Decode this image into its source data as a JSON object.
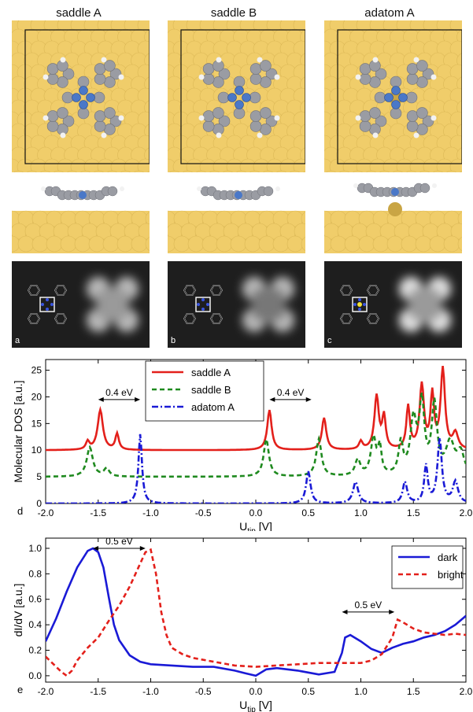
{
  "figure": {
    "column_titles": [
      "saddle A",
      "saddle B",
      "adatom A"
    ],
    "stm_labels": [
      "a",
      "b",
      "c"
    ],
    "colors": {
      "gold": "#f0cd6a",
      "gold_dark": "#c9a544",
      "molecule": "#9a9ca3",
      "nitrogen": "#4a78c8",
      "stm_bg": "#1e1e1e"
    }
  },
  "chart_data": [
    {
      "type": "line",
      "panel_label": "d",
      "ylabel": "Molecular DOS [a.u.]",
      "xlabel_main": "U",
      "xlabel_sub": "tip",
      "xlabel_unit": " [V]",
      "xlim": [
        -2.0,
        2.0
      ],
      "ylim": [
        0,
        27
      ],
      "xticks": [
        "-2.0",
        "-1.5",
        "-1.0",
        "-0.5",
        "0.0",
        "0.5",
        "1.0",
        "1.5",
        "2.0"
      ],
      "yticks": [
        "0",
        "5",
        "10",
        "15",
        "20",
        "25"
      ],
      "legend_position": "top-center",
      "annotations": [
        {
          "text": "0.4 eV",
          "x_start": -1.5,
          "x_end": -1.1,
          "y": 19.5
        },
        {
          "text": "0.4 eV",
          "x_start": 0.13,
          "x_end": 0.53,
          "y": 19.5
        }
      ],
      "series": [
        {
          "name": "saddle A",
          "color": "#e3201b",
          "style": "solid",
          "baseline": 10,
          "peaks": [
            [
              -1.6,
              1.5,
              0.02
            ],
            [
              -1.48,
              7.5,
              0.03
            ],
            [
              -1.32,
              3,
              0.02
            ],
            [
              0.13,
              7.5,
              0.025
            ],
            [
              0.65,
              6,
              0.025
            ],
            [
              1.0,
              1.5,
              0.02
            ],
            [
              1.15,
              10,
              0.025
            ],
            [
              1.22,
              6,
              0.02
            ],
            [
              1.45,
              8,
              0.02
            ],
            [
              1.58,
              12,
              0.025
            ],
            [
              1.68,
              10,
              0.02
            ],
            [
              1.78,
              15,
              0.025
            ],
            [
              1.9,
              3,
              0.03
            ]
          ]
        },
        {
          "name": "saddle B",
          "color": "#1f8a1f",
          "style": "dashed",
          "baseline": 5,
          "peaks": [
            [
              -1.58,
              5.5,
              0.035
            ],
            [
              -1.42,
              1.5,
              0.03
            ],
            [
              0.1,
              7,
              0.03
            ],
            [
              0.6,
              7,
              0.03
            ],
            [
              0.97,
              3,
              0.03
            ],
            [
              1.12,
              7,
              0.03
            ],
            [
              1.18,
              5,
              0.02
            ],
            [
              1.38,
              6,
              0.025
            ],
            [
              1.5,
              10,
              0.035
            ],
            [
              1.58,
              13,
              0.03
            ],
            [
              1.7,
              13,
              0.03
            ],
            [
              1.85,
              6,
              0.05
            ],
            [
              1.95,
              4,
              0.04
            ]
          ]
        },
        {
          "name": "adatom A",
          "color": "#1a1ad6",
          "style": "dashdot",
          "baseline": 0,
          "peaks": [
            [
              -1.1,
              13,
              0.02
            ],
            [
              0.5,
              6,
              0.025
            ],
            [
              0.95,
              4,
              0.03
            ],
            [
              1.42,
              4,
              0.025
            ],
            [
              1.62,
              7,
              0.02
            ],
            [
              1.75,
              12,
              0.025
            ],
            [
              1.9,
              4,
              0.03
            ]
          ]
        }
      ]
    },
    {
      "type": "line",
      "panel_label": "e",
      "ylabel": "dI/dV [a.u.]",
      "xlabel_main": "U",
      "xlabel_sub": "tip",
      "xlabel_unit": " [V]",
      "xlim": [
        -2.0,
        2.0
      ],
      "ylim": [
        -0.05,
        1.08
      ],
      "xticks": [
        "-2.0",
        "-1.5",
        "-1.0",
        "-0.5",
        "0.0",
        "0.5",
        "1.0",
        "1.5",
        "2.0"
      ],
      "yticks": [
        "0.0",
        "0.2",
        "0.4",
        "0.6",
        "0.8",
        "1.0"
      ],
      "legend_position": "top-right",
      "annotations": [
        {
          "text": "0.5 eV",
          "x_start": -1.55,
          "x_end": -1.05,
          "y": 1.0
        },
        {
          "text": "0.5 eV",
          "x_start": 0.82,
          "x_end": 1.32,
          "y": 0.5
        }
      ],
      "series": [
        {
          "name": "dark",
          "color": "#1a1ad6",
          "style": "solid",
          "x": [
            -2.0,
            -1.9,
            -1.8,
            -1.7,
            -1.6,
            -1.55,
            -1.5,
            -1.45,
            -1.4,
            -1.35,
            -1.3,
            -1.2,
            -1.1,
            -1.0,
            -0.8,
            -0.6,
            -0.4,
            -0.2,
            -0.1,
            0.0,
            0.1,
            0.2,
            0.4,
            0.6,
            0.75,
            0.82,
            0.85,
            0.9,
            1.0,
            1.1,
            1.2,
            1.3,
            1.4,
            1.5,
            1.6,
            1.7,
            1.8,
            1.9,
            2.0
          ],
          "y": [
            0.27,
            0.45,
            0.66,
            0.85,
            0.98,
            1.0,
            0.97,
            0.85,
            0.62,
            0.4,
            0.28,
            0.16,
            0.11,
            0.09,
            0.08,
            0.07,
            0.07,
            0.04,
            0.02,
            0.0,
            0.05,
            0.06,
            0.04,
            0.01,
            0.03,
            0.18,
            0.3,
            0.32,
            0.27,
            0.21,
            0.18,
            0.22,
            0.25,
            0.27,
            0.3,
            0.32,
            0.35,
            0.4,
            0.47
          ]
        },
        {
          "name": "bright",
          "color": "#e3201b",
          "style": "dashed",
          "x": [
            -2.0,
            -1.9,
            -1.85,
            -1.8,
            -1.75,
            -1.7,
            -1.6,
            -1.5,
            -1.4,
            -1.3,
            -1.2,
            -1.1,
            -1.05,
            -1.0,
            -0.95,
            -0.9,
            -0.85,
            -0.8,
            -0.7,
            -0.6,
            -0.4,
            -0.2,
            0.0,
            0.2,
            0.4,
            0.6,
            0.8,
            1.0,
            1.1,
            1.2,
            1.3,
            1.35,
            1.4,
            1.5,
            1.6,
            1.7,
            1.8,
            1.9,
            2.0
          ],
          "y": [
            0.15,
            0.07,
            0.03,
            0.0,
            0.04,
            0.12,
            0.22,
            0.3,
            0.43,
            0.55,
            0.7,
            0.88,
            0.97,
            0.99,
            0.8,
            0.5,
            0.32,
            0.22,
            0.17,
            0.14,
            0.11,
            0.08,
            0.07,
            0.08,
            0.09,
            0.1,
            0.1,
            0.1,
            0.12,
            0.17,
            0.3,
            0.44,
            0.42,
            0.37,
            0.34,
            0.33,
            0.32,
            0.33,
            0.32
          ]
        }
      ]
    }
  ]
}
